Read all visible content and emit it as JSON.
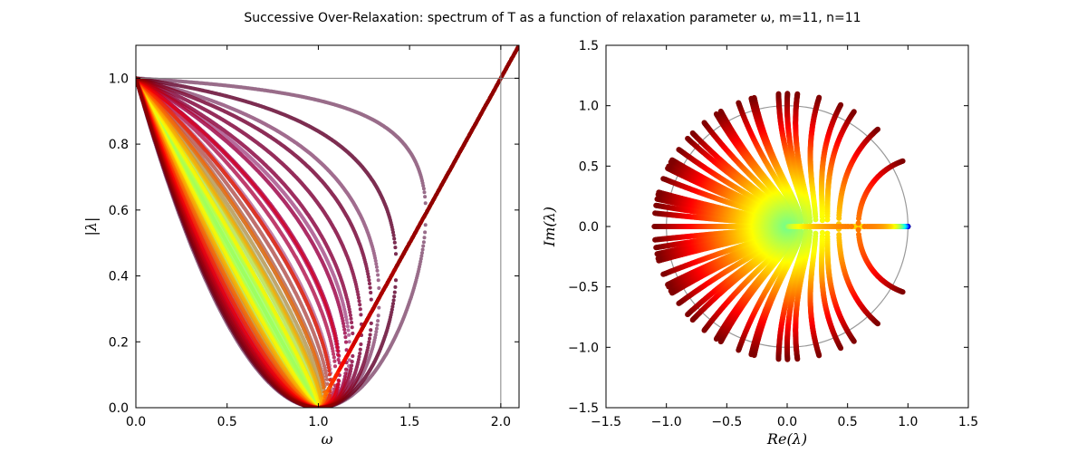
{
  "title": "Successive Over-Relaxation: spectrum of T as a function of relaxation parameter ω, m=11, n=11",
  "chart_data": [
    {
      "type": "scatter",
      "name": "modulus-vs-omega",
      "xlabel": "ω",
      "ylabel": "|λ|",
      "xlim": [
        0.0,
        2.1
      ],
      "ylim": [
        0.0,
        1.1
      ],
      "xticks": [
        "0.0",
        "0.5",
        "1.0",
        "1.5",
        "2.0"
      ],
      "yticks": [
        "0.0",
        "0.2",
        "0.4",
        "0.6",
        "0.8",
        "1.0"
      ],
      "reference_lines": {
        "hline_y": 1.0,
        "vline_x": 2.0
      },
      "grid_m": 11,
      "grid_n": 11,
      "omega_sampling": {
        "start": 0.0,
        "end": 2.1,
        "step": 0.003
      },
      "colormap": "jet",
      "color_by": "eigenvalue index"
    },
    {
      "type": "scatter",
      "name": "complex-plane",
      "xlabel": "Re(λ)",
      "ylabel": "Im(λ)",
      "xlim": [
        -1.5,
        1.5
      ],
      "ylim": [
        -1.5,
        1.5
      ],
      "xticks": [
        "−1.5",
        "−1.0",
        "−0.5",
        "0.0",
        "0.5",
        "1.0",
        "1.5"
      ],
      "yticks": [
        "−1.5",
        "−1.0",
        "−0.5",
        "0.0",
        "0.5",
        "1.0",
        "1.5"
      ],
      "unit_circle_radius": 1.0,
      "colormap": "jet",
      "color_by": "relaxation parameter ω"
    }
  ]
}
